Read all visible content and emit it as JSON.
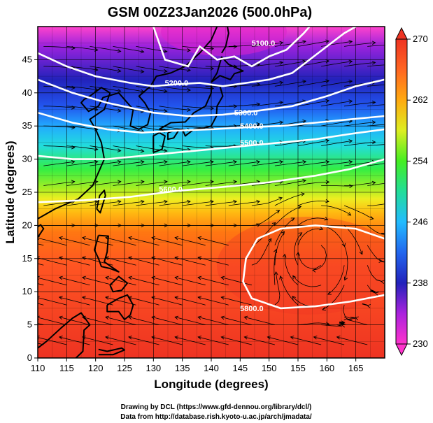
{
  "title": "GSM 00Z23Jan2026 (500.0hPa)",
  "xlabel": "Longitude (degrees)",
  "ylabel": "Latitude  (degrees)",
  "credits": [
    "Drawing by DCL (https://www.gfd-dennou.org/library/dcl/)",
    "Data from http://database.rish.kyoto-u.ac.jp/arch/jmadata/"
  ],
  "map": {
    "lon_range": [
      110,
      170
    ],
    "lat_range": [
      0,
      50
    ],
    "lon_ticks": [
      110,
      115,
      120,
      125,
      130,
      135,
      140,
      145,
      150,
      155,
      160,
      165
    ],
    "lat_ticks": [
      0,
      5,
      10,
      15,
      20,
      25,
      30,
      35,
      40,
      45
    ],
    "grid": true
  },
  "colorbar": {
    "min": 230,
    "max": 270,
    "labels": [
      230,
      238,
      246,
      254,
      262,
      270
    ],
    "colors": [
      "#ff33cc",
      "#aa22dd",
      "#3322cc",
      "#2255ee",
      "#22aaff",
      "#22dddd",
      "#33ee33",
      "#99ee22",
      "#eeee22",
      "#ffcc11",
      "#ff8811",
      "#ff5522",
      "#ee3322"
    ]
  },
  "contours": [
    {
      "label": "5100.0",
      "label_lon": 149,
      "label_lat": 47.5
    },
    {
      "label": "5200.0",
      "label_lon": 134,
      "label_lat": 41.5
    },
    {
      "label": "5300.0",
      "label_lon": 146,
      "label_lat": 37.0
    },
    {
      "label": "5400.0",
      "label_lon": 147,
      "label_lat": 35.0
    },
    {
      "label": "5500.0",
      "label_lon": 147,
      "label_lat": 32.5
    },
    {
      "label": "5600.0",
      "label_lon": 133,
      "label_lat": 25.5
    },
    {
      "label": "5800.0",
      "label_lon": 147,
      "label_lat": 7.5
    }
  ]
}
